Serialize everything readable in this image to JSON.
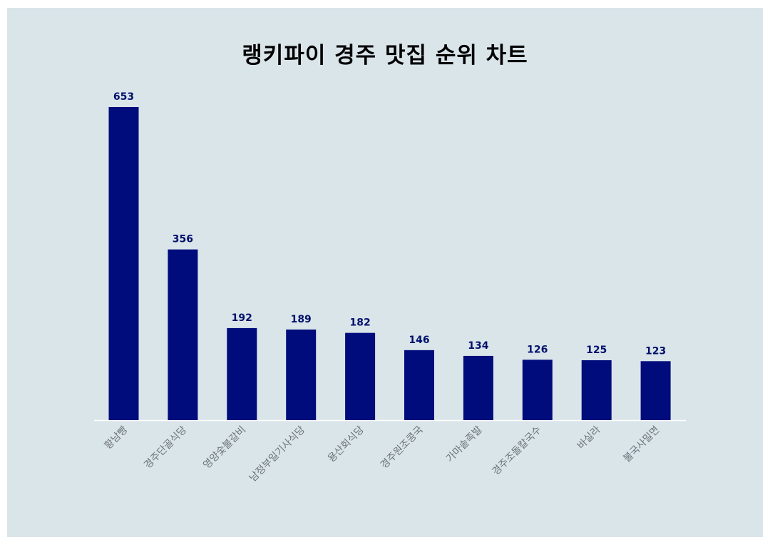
{
  "colors": {
    "background": "#dae5ea",
    "bar": "#000c7b",
    "value_label": "#00106b",
    "tick_label": "#6b7378",
    "baseline": "#ffffff"
  },
  "chart_data": {
    "type": "bar",
    "title": "랭키파이 경주 맛집 순위 차트",
    "xlabel": "",
    "ylabel": "",
    "categories": [
      "황남빵",
      "경주단골식당",
      "영양숯불갈비",
      "남정부일기사식당",
      "용산회식당",
      "경주원조콩국",
      "가마솥족발",
      "경주조돌칼국수",
      "바실라",
      "불국사밀면"
    ],
    "values": [
      653,
      356,
      192,
      189,
      182,
      146,
      134,
      126,
      125,
      123
    ],
    "ylim": [
      0,
      653
    ],
    "grid": false,
    "legend": "none"
  }
}
